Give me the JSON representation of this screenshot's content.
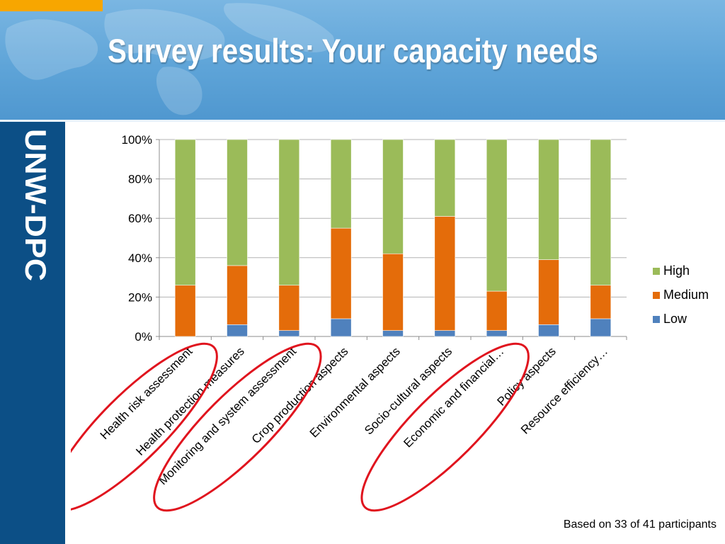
{
  "slide": {
    "title": "Survey results: Your capacity needs",
    "logo_text": "UNW-DPC",
    "footnote": "Based on 33 of 41 participants"
  },
  "colors": {
    "header_blue": "#5ea4d8",
    "sidebar_navy": "#0c4f86",
    "accent_orange": "#f7a600",
    "highlight_ellipse": "#e0141e"
  },
  "chart_data": {
    "type": "bar",
    "stacked": "percent",
    "categories": [
      "Health risk assessment",
      "Health protection measures",
      "Monitoring and system assessment",
      "Crop production aspects",
      "Environmental aspects",
      "Socio-cultural aspects",
      "Economic and financial…",
      "Policy aspects",
      "Resource efficiency…"
    ],
    "series": [
      {
        "name": "Low",
        "color": "#4f81bd",
        "values": [
          0,
          6,
          3,
          9,
          3,
          3,
          3,
          6,
          9
        ]
      },
      {
        "name": "Medium",
        "color": "#e46c0a",
        "values": [
          26,
          30,
          23,
          46,
          39,
          58,
          20,
          33,
          17
        ]
      },
      {
        "name": "High",
        "color": "#9bbb59",
        "values": [
          74,
          64,
          74,
          45,
          58,
          39,
          77,
          61,
          74
        ]
      }
    ],
    "ylim": [
      0,
      100
    ],
    "yticks": [
      "0%",
      "20%",
      "40%",
      "60%",
      "80%",
      "100%"
    ],
    "grid": true,
    "legend": "right",
    "highlighted_categories": [
      "Health risk assessment",
      "Monitoring and system assessment",
      "Economic and financial…"
    ]
  }
}
